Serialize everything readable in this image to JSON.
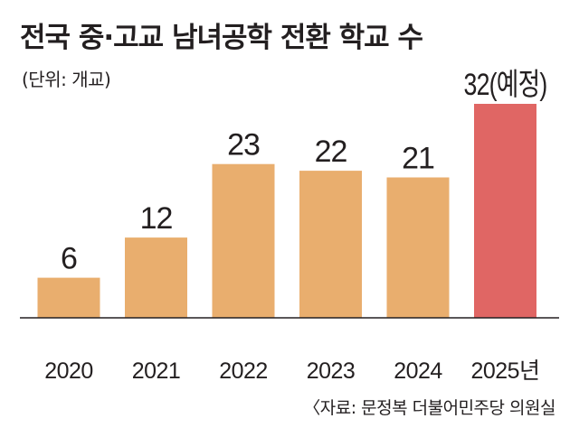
{
  "header": {
    "title": "전국 중·고교 남녀공학 전환 학교 수",
    "unit": "(단위: 개교)"
  },
  "footer": {
    "source": "〈자료: 문정복 더불어민주당 의원실"
  },
  "colors": {
    "bar": "#e9ae6e",
    "highlight": "#e06664",
    "axis": "#231f20"
  },
  "chart_data": {
    "type": "bar",
    "title": "전국 중·고교 남녀공학 전환 학교 수",
    "xlabel": "",
    "ylabel": "",
    "unit": "(단위: 개교)",
    "categories": [
      "2020",
      "2021",
      "2022",
      "2023",
      "2024",
      "2025년"
    ],
    "values": [
      6,
      12,
      23,
      22,
      21,
      32
    ],
    "value_labels": [
      "6",
      "12",
      "23",
      "22",
      "21",
      "32(예정)"
    ],
    "highlight_index": 5,
    "ylim": [
      0,
      32
    ],
    "grid": false
  }
}
